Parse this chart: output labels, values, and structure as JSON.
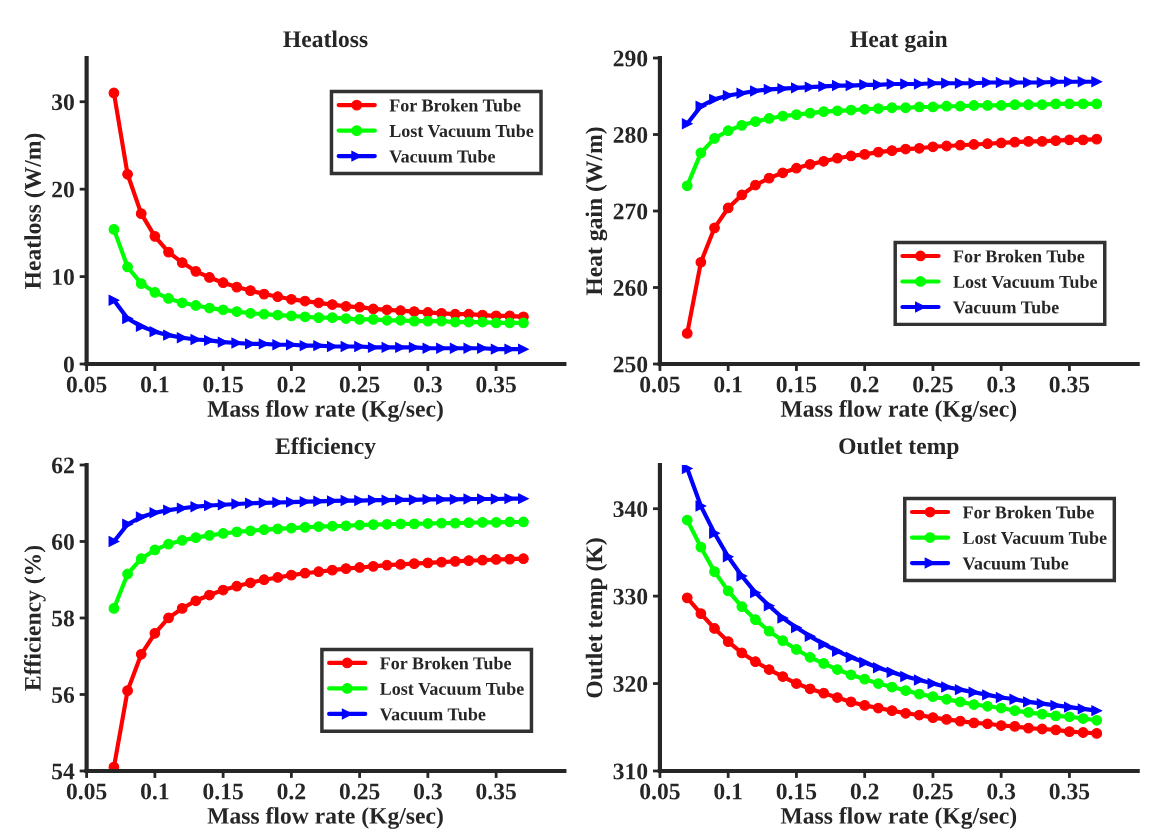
{
  "chart_data": [
    {
      "type": "line",
      "title": "Heatloss",
      "xlabel": "Mass flow rate (Kg/sec)",
      "ylabel": "Heatloss (W/m)",
      "x": [
        0.07,
        0.08,
        0.09,
        0.1,
        0.11,
        0.12,
        0.13,
        0.14,
        0.15,
        0.16,
        0.17,
        0.18,
        0.19,
        0.2,
        0.21,
        0.22,
        0.23,
        0.24,
        0.25,
        0.26,
        0.27,
        0.28,
        0.29,
        0.3,
        0.31,
        0.32,
        0.33,
        0.34,
        0.35,
        0.36,
        0.37
      ],
      "xlim": [
        0.05,
        0.4
      ],
      "xticks": [
        0.05,
        0.1,
        0.15,
        0.2,
        0.25,
        0.3,
        0.35
      ],
      "ylim": [
        0,
        35
      ],
      "yticks": [
        0,
        10,
        20,
        30
      ],
      "legend": "top right",
      "grid": false,
      "series": [
        {
          "name": "For Broken Tube",
          "color": "#ff0000",
          "marker": "circle",
          "values": [
            31,
            21.7,
            17.2,
            14.6,
            12.8,
            11.6,
            10.6,
            9.9,
            9.3,
            8.8,
            8.4,
            8.0,
            7.7,
            7.4,
            7.2,
            7.0,
            6.8,
            6.6,
            6.5,
            6.3,
            6.2,
            6.1,
            6.0,
            5.9,
            5.8,
            5.7,
            5.7,
            5.6,
            5.5,
            5.5,
            5.4
          ]
        },
        {
          "name": "Lost Vacuum Tube",
          "color": "#00ff00",
          "marker": "circle",
          "values": [
            15.4,
            11.1,
            9.2,
            8.2,
            7.5,
            7.0,
            6.7,
            6.4,
            6.2,
            6.0,
            5.8,
            5.7,
            5.6,
            5.5,
            5.4,
            5.3,
            5.3,
            5.2,
            5.1,
            5.1,
            5.0,
            5.0,
            4.9,
            4.9,
            4.9,
            4.8,
            4.8,
            4.8,
            4.7,
            4.7,
            4.7
          ]
        },
        {
          "name": "Vacuum Tube",
          "color": "#0000ff",
          "marker": "triangle",
          "values": [
            7.3,
            5.2,
            4.3,
            3.7,
            3.3,
            3.0,
            2.8,
            2.7,
            2.5,
            2.4,
            2.3,
            2.3,
            2.2,
            2.2,
            2.1,
            2.1,
            2.0,
            2.0,
            2.0,
            1.9,
            1.9,
            1.9,
            1.9,
            1.8,
            1.8,
            1.8,
            1.8,
            1.8,
            1.7,
            1.7,
            1.7
          ]
        }
      ]
    },
    {
      "type": "line",
      "title": "Heat gain",
      "xlabel": "Mass flow rate (Kg/sec)",
      "ylabel": "Heat gain (W/m)",
      "x": [
        0.07,
        0.08,
        0.09,
        0.1,
        0.11,
        0.12,
        0.13,
        0.14,
        0.15,
        0.16,
        0.17,
        0.18,
        0.19,
        0.2,
        0.21,
        0.22,
        0.23,
        0.24,
        0.25,
        0.26,
        0.27,
        0.28,
        0.29,
        0.3,
        0.31,
        0.32,
        0.33,
        0.34,
        0.35,
        0.36,
        0.37
      ],
      "xlim": [
        0.05,
        0.4
      ],
      "xticks": [
        0.05,
        0.1,
        0.15,
        0.2,
        0.25,
        0.3,
        0.35
      ],
      "ylim": [
        250,
        290
      ],
      "yticks": [
        250,
        260,
        270,
        280,
        290
      ],
      "legend": "bottom right",
      "grid": false,
      "series": [
        {
          "name": "For Broken Tube",
          "color": "#ff0000",
          "marker": "circle",
          "values": [
            254,
            263.3,
            267.8,
            270.4,
            272.1,
            273.4,
            274.3,
            275.0,
            275.6,
            276.1,
            276.5,
            276.9,
            277.2,
            277.4,
            277.7,
            277.9,
            278.1,
            278.2,
            278.4,
            278.5,
            278.6,
            278.7,
            278.8,
            278.9,
            279.0,
            279.1,
            279.1,
            279.2,
            279.3,
            279.3,
            279.4
          ]
        },
        {
          "name": "Lost Vacuum Tube",
          "color": "#00ff00",
          "marker": "circle",
          "values": [
            273.3,
            277.6,
            279.5,
            280.5,
            281.2,
            281.7,
            282.1,
            282.4,
            282.6,
            282.8,
            283.0,
            283.1,
            283.2,
            283.3,
            283.4,
            283.5,
            283.5,
            283.6,
            283.6,
            283.7,
            283.7,
            283.8,
            283.8,
            283.8,
            283.9,
            283.9,
            283.9,
            284.0,
            284.0,
            284.0,
            284.0
          ]
        },
        {
          "name": "Vacuum Tube",
          "color": "#0000ff",
          "marker": "triangle",
          "values": [
            281.4,
            283.7,
            284.6,
            285.1,
            285.4,
            285.7,
            285.9,
            286.0,
            286.1,
            286.2,
            286.3,
            286.4,
            286.4,
            286.5,
            286.5,
            286.6,
            286.6,
            286.6,
            286.7,
            286.7,
            286.7,
            286.7,
            286.8,
            286.8,
            286.8,
            286.8,
            286.8,
            286.9,
            286.9,
            286.9,
            286.9
          ]
        }
      ]
    },
    {
      "type": "line",
      "title": "Efficiency",
      "xlabel": "Mass flow rate (Kg/sec)",
      "ylabel": "Efficiency (%)",
      "x": [
        0.07,
        0.08,
        0.09,
        0.1,
        0.11,
        0.12,
        0.13,
        0.14,
        0.15,
        0.16,
        0.17,
        0.18,
        0.19,
        0.2,
        0.21,
        0.22,
        0.23,
        0.24,
        0.25,
        0.26,
        0.27,
        0.28,
        0.29,
        0.3,
        0.31,
        0.32,
        0.33,
        0.34,
        0.35,
        0.36,
        0.37
      ],
      "xlim": [
        0.05,
        0.4
      ],
      "xticks": [
        0.05,
        0.1,
        0.15,
        0.2,
        0.25,
        0.3,
        0.35
      ],
      "ylim": [
        54,
        62
      ],
      "yticks": [
        54,
        56,
        58,
        60,
        62
      ],
      "legend": "bottom right",
      "grid": false,
      "series": [
        {
          "name": "For Broken Tube",
          "color": "#ff0000",
          "marker": "circle",
          "values": [
            54.1,
            56.1,
            57.05,
            57.6,
            58.0,
            58.25,
            58.45,
            58.6,
            58.73,
            58.83,
            58.92,
            59.0,
            59.06,
            59.12,
            59.17,
            59.21,
            59.25,
            59.29,
            59.32,
            59.35,
            59.38,
            59.4,
            59.42,
            59.44,
            59.46,
            59.48,
            59.5,
            59.51,
            59.53,
            59.54,
            59.55
          ]
        },
        {
          "name": "Lost Vacuum Tube",
          "color": "#00ff00",
          "marker": "circle",
          "values": [
            58.25,
            59.15,
            59.55,
            59.78,
            59.93,
            60.03,
            60.1,
            60.16,
            60.21,
            60.25,
            60.28,
            60.31,
            60.33,
            60.35,
            60.37,
            60.39,
            60.4,
            60.41,
            60.43,
            60.44,
            60.45,
            60.46,
            60.46,
            60.47,
            60.48,
            60.48,
            60.49,
            60.5,
            60.5,
            60.51,
            60.51
          ]
        },
        {
          "name": "Vacuum Tube",
          "color": "#0000ff",
          "marker": "triangle",
          "values": [
            60.0,
            60.45,
            60.64,
            60.75,
            60.82,
            60.87,
            60.91,
            60.94,
            60.96,
            60.98,
            61.0,
            61.01,
            61.02,
            61.03,
            61.04,
            61.05,
            61.06,
            61.07,
            61.07,
            61.08,
            61.08,
            61.09,
            61.09,
            61.1,
            61.1,
            61.1,
            61.11,
            61.11,
            61.11,
            61.12,
            61.12
          ]
        }
      ]
    },
    {
      "type": "line",
      "title": "Outlet temp",
      "xlabel": "Mass flow rate (Kg/sec)",
      "ylabel": "Outlet temp (K)",
      "x": [
        0.07,
        0.08,
        0.09,
        0.1,
        0.11,
        0.12,
        0.13,
        0.14,
        0.15,
        0.16,
        0.17,
        0.18,
        0.19,
        0.2,
        0.21,
        0.22,
        0.23,
        0.24,
        0.25,
        0.26,
        0.27,
        0.28,
        0.29,
        0.3,
        0.31,
        0.32,
        0.33,
        0.34,
        0.35,
        0.36,
        0.37
      ],
      "xlim": [
        0.05,
        0.4
      ],
      "xticks": [
        0.05,
        0.1,
        0.15,
        0.2,
        0.25,
        0.3,
        0.35
      ],
      "ylim": [
        310,
        345
      ],
      "yticks": [
        310,
        320,
        330,
        340
      ],
      "legend": "top right",
      "grid": false,
      "series": [
        {
          "name": "For Broken Tube",
          "color": "#ff0000",
          "marker": "circle",
          "values": [
            329.8,
            328.0,
            326.3,
            324.8,
            323.5,
            322.5,
            321.6,
            320.8,
            320.0,
            319.4,
            318.9,
            318.4,
            317.9,
            317.5,
            317.2,
            316.9,
            316.6,
            316.4,
            316.1,
            315.9,
            315.7,
            315.5,
            315.4,
            315.2,
            315.1,
            314.9,
            314.8,
            314.7,
            314.5,
            314.4,
            314.3
          ]
        },
        {
          "name": "Lost Vacuum Tube",
          "color": "#00ff00",
          "marker": "circle",
          "values": [
            338.7,
            335.6,
            332.8,
            330.6,
            328.8,
            327.3,
            326.0,
            324.9,
            323.9,
            323.0,
            322.3,
            321.6,
            321.0,
            320.5,
            320.0,
            319.6,
            319.2,
            318.8,
            318.5,
            318.2,
            317.9,
            317.6,
            317.4,
            317.2,
            316.9,
            316.7,
            316.5,
            316.3,
            316.2,
            316.0,
            315.8
          ]
        },
        {
          "name": "Vacuum Tube",
          "color": "#0000ff",
          "marker": "triangle",
          "values": [
            344.6,
            340.3,
            337.2,
            334.5,
            332.3,
            330.4,
            328.9,
            327.5,
            326.4,
            325.4,
            324.5,
            323.7,
            323.0,
            322.4,
            321.8,
            321.3,
            320.8,
            320.4,
            320.0,
            319.6,
            319.3,
            319.0,
            318.7,
            318.4,
            318.2,
            317.9,
            317.7,
            317.5,
            317.3,
            317.1,
            316.9
          ]
        }
      ]
    }
  ]
}
